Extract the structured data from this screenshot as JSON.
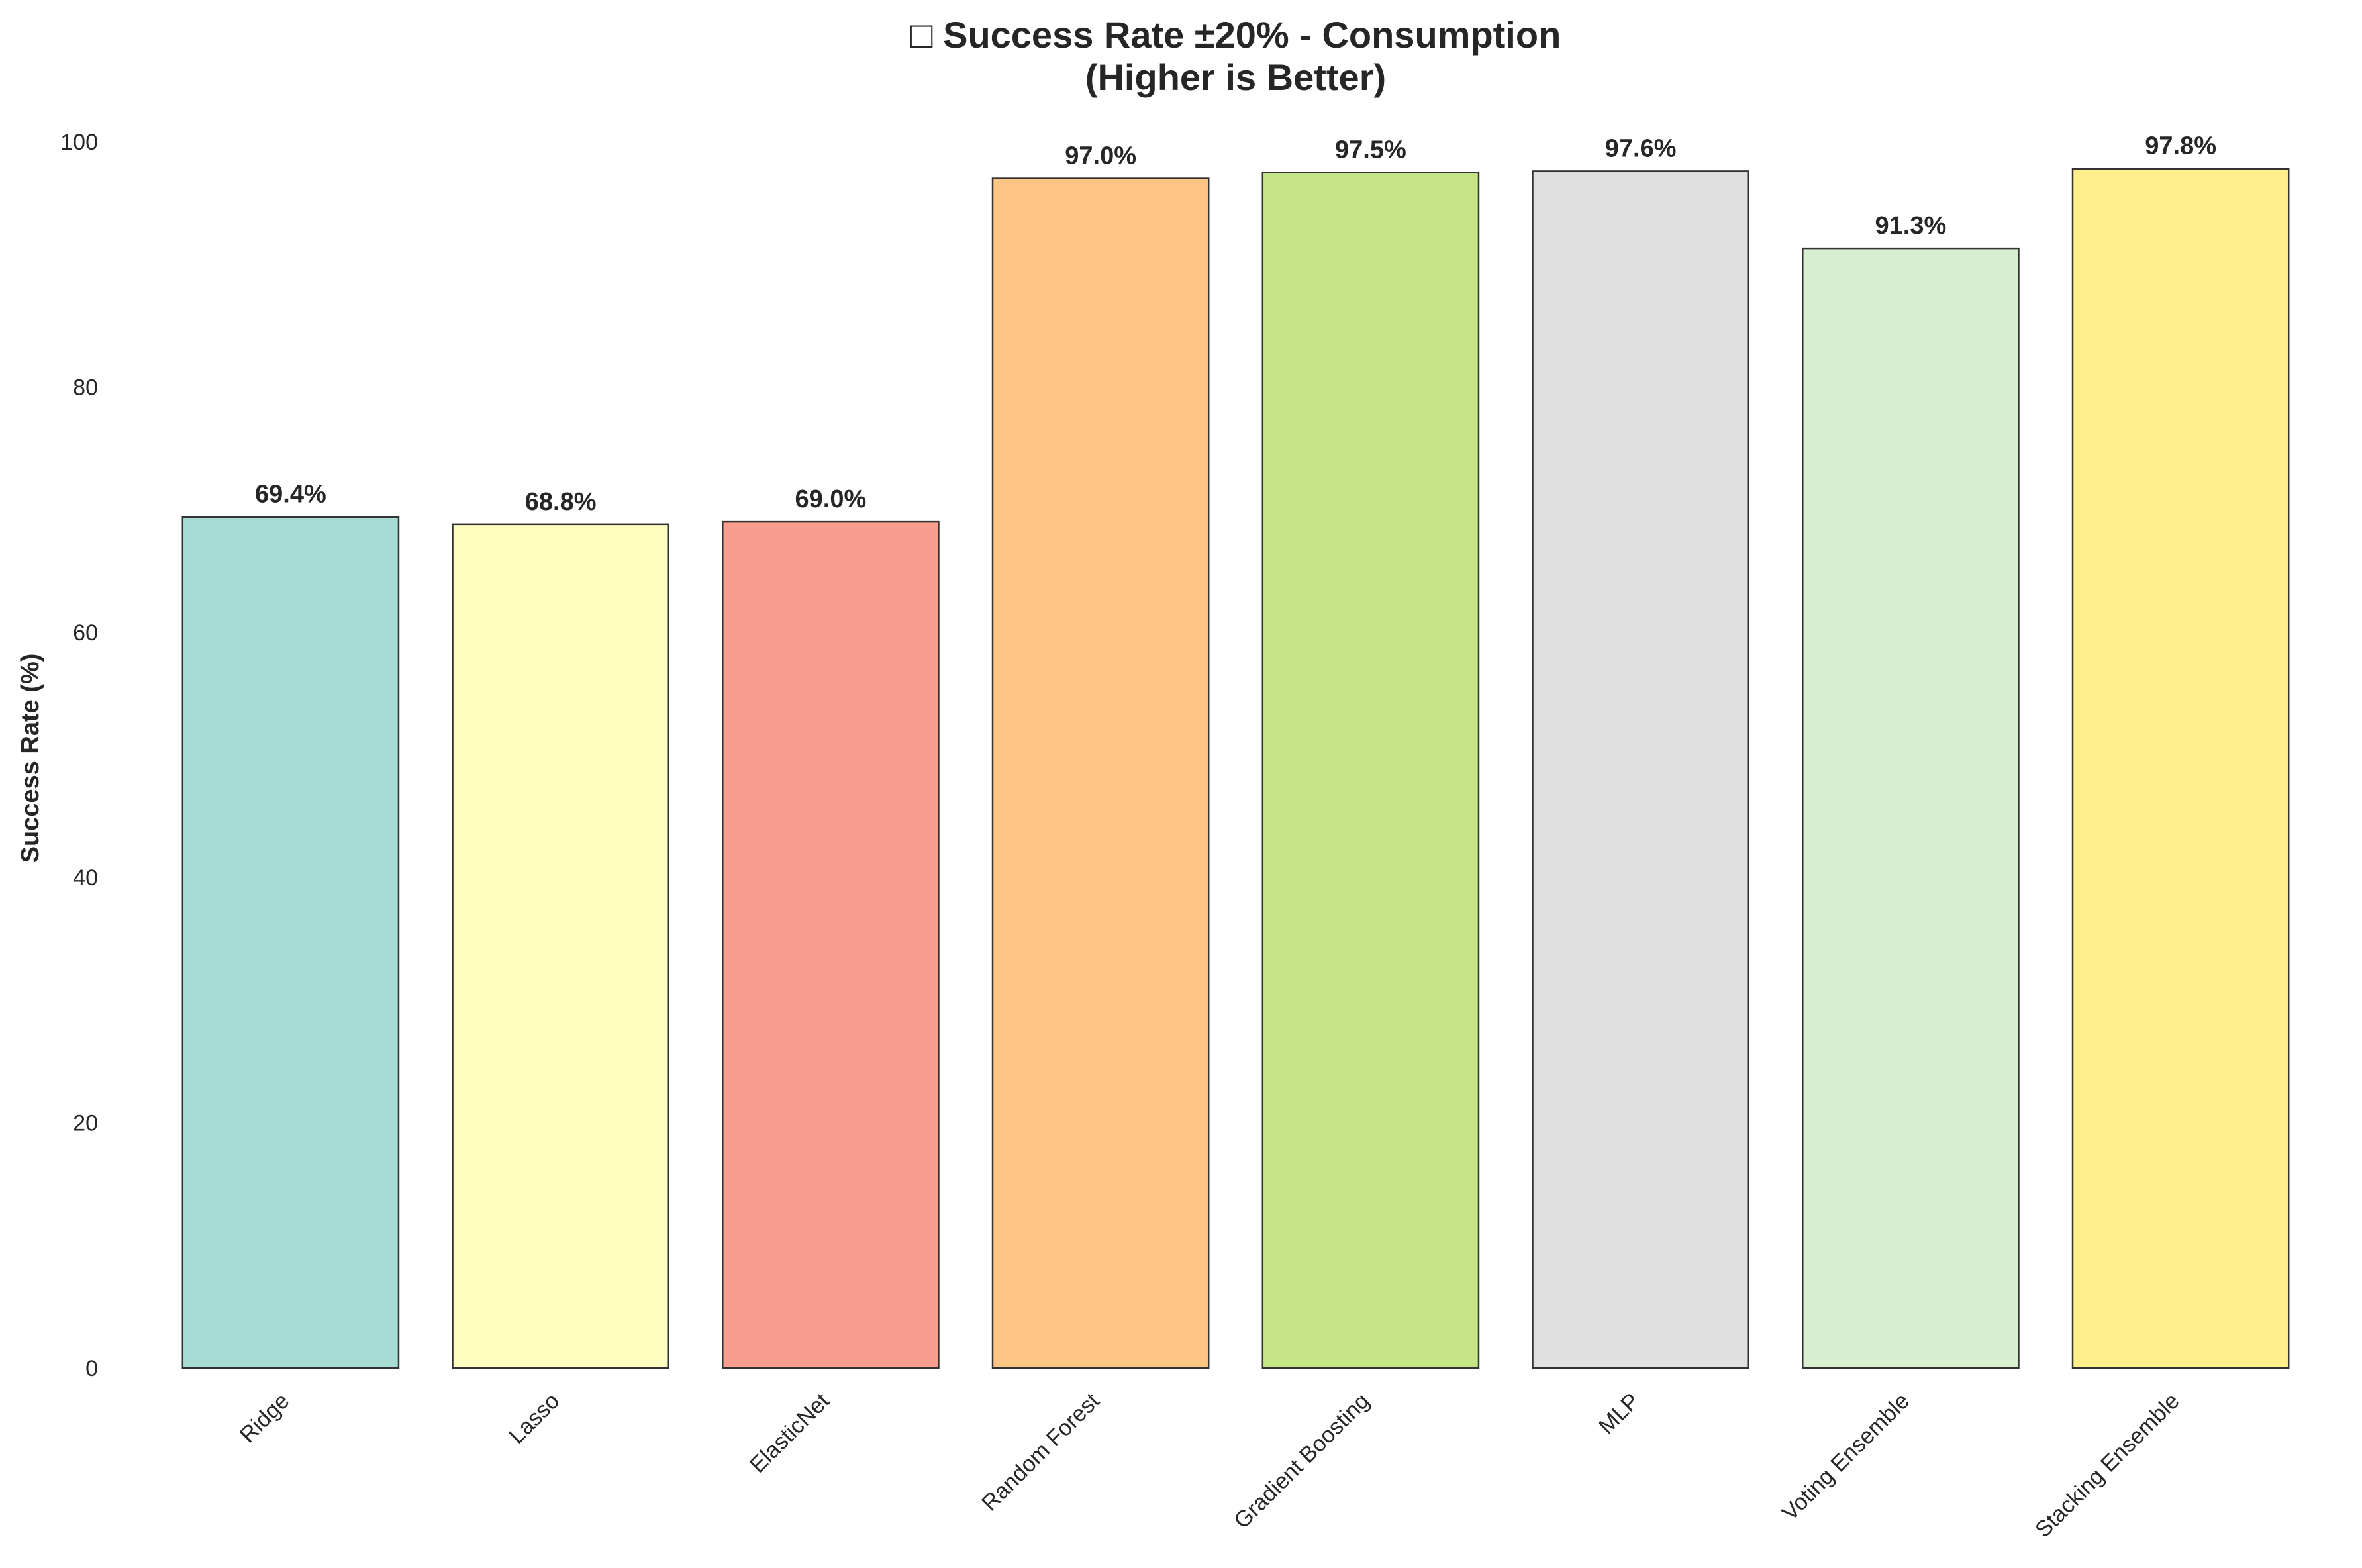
{
  "chart_data": {
    "type": "bar",
    "title": "□ Success Rate ±20% - Consumption",
    "subtitle": "(Higher is Better)",
    "xlabel": "",
    "ylabel": "Success Rate (%)",
    "ylim": [
      0,
      100
    ],
    "yticks": [
      "0",
      "20",
      "40",
      "60",
      "80",
      "100"
    ],
    "grid": false,
    "legend": "none",
    "categories": [
      "Ridge",
      "Lasso",
      "ElasticNet",
      "Random Forest",
      "Gradient Boosting",
      "MLP",
      "Voting Ensemble",
      "Stacking Ensemble"
    ],
    "values": [
      69.4,
      68.8,
      69.0,
      97.0,
      97.5,
      97.6,
      91.3,
      97.8
    ],
    "value_labels": [
      "69.4%",
      "68.8%",
      "69.0%",
      "97.0%",
      "97.5%",
      "97.6%",
      "91.3%",
      "97.8%"
    ],
    "colors": [
      "#a6dcd3",
      "#fefec0",
      "#f99d8f",
      "#fdc584",
      "#c4e485",
      "#e0e0e0",
      "#d7efcf",
      "#ffee8a"
    ]
  }
}
